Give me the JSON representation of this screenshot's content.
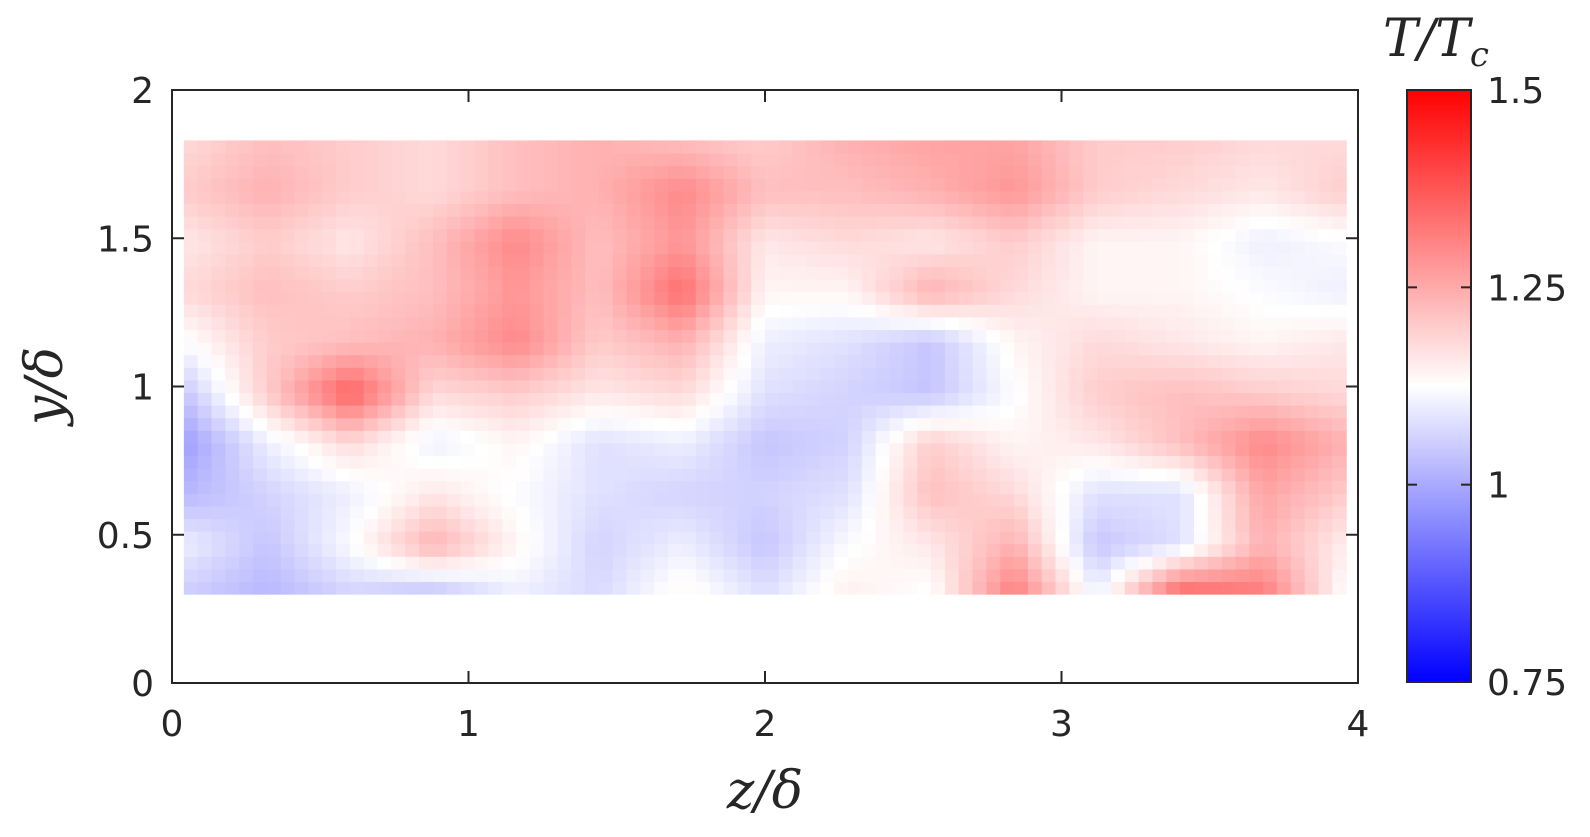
{
  "chart_data": {
    "type": "heatmap",
    "title": "",
    "xlabel": "z/δ",
    "ylabel": "y/δ",
    "xlim": [
      0,
      4
    ],
    "ylim": [
      0,
      2
    ],
    "x_ticks": [
      0,
      1,
      2,
      3,
      4
    ],
    "y_ticks": [
      0,
      0.5,
      1,
      1.5,
      2
    ],
    "x_tick_labels": [
      "0",
      "1",
      "2",
      "3",
      "4"
    ],
    "y_tick_labels": [
      "0",
      "0.5",
      "1",
      "1.5",
      "2"
    ],
    "colorbar": {
      "title": "T/T",
      "title_subscript": "c",
      "range": [
        0.75,
        1.5
      ],
      "ticks": [
        0.75,
        1,
        1.25,
        1.5
      ],
      "tick_labels": [
        "0.75",
        "1",
        "1.25",
        "1.5"
      ],
      "colormap": [
        "#0000ff",
        "#ffffff",
        "#ff0000"
      ],
      "white_at": 1.125
    },
    "grid": false,
    "data_extent": {
      "x": [
        0.04,
        3.96
      ],
      "y": [
        0.3,
        1.83
      ]
    },
    "x": [
      0.04,
      0.32,
      0.6,
      0.88,
      1.16,
      1.44,
      1.72,
      2.0,
      2.28,
      2.56,
      2.84,
      3.12,
      3.4,
      3.68,
      3.96
    ],
    "y": [
      0.3,
      0.47,
      0.64,
      0.81,
      0.98,
      1.15,
      1.32,
      1.49,
      1.66,
      1.83
    ],
    "values": [
      [
        1.05,
        1.02,
        1.06,
        1.03,
        1.1,
        1.07,
        1.14,
        1.08,
        1.15,
        1.12,
        1.32,
        1.1,
        1.36,
        1.32,
        1.12
      ],
      [
        1.1,
        1.04,
        1.12,
        1.24,
        1.14,
        1.06,
        1.1,
        1.04,
        1.12,
        1.16,
        1.24,
        1.04,
        1.08,
        1.24,
        1.15
      ],
      [
        1.02,
        1.06,
        1.1,
        1.16,
        1.12,
        1.08,
        1.06,
        1.06,
        1.08,
        1.22,
        1.18,
        1.08,
        1.08,
        1.26,
        1.2
      ],
      [
        0.98,
        1.1,
        1.18,
        1.1,
        1.14,
        1.08,
        1.1,
        1.04,
        1.06,
        1.2,
        1.14,
        1.16,
        1.22,
        1.3,
        1.24
      ],
      [
        1.04,
        1.2,
        1.36,
        1.18,
        1.2,
        1.16,
        1.18,
        1.08,
        1.06,
        1.04,
        1.12,
        1.2,
        1.22,
        1.2,
        1.18
      ],
      [
        1.12,
        1.2,
        1.22,
        1.24,
        1.3,
        1.2,
        1.24,
        1.1,
        1.08,
        1.04,
        1.14,
        1.18,
        1.16,
        1.14,
        1.16
      ],
      [
        1.18,
        1.22,
        1.2,
        1.22,
        1.28,
        1.22,
        1.34,
        1.14,
        1.14,
        1.24,
        1.18,
        1.14,
        1.14,
        1.12,
        1.1
      ],
      [
        1.16,
        1.2,
        1.16,
        1.22,
        1.3,
        1.22,
        1.28,
        1.16,
        1.18,
        1.16,
        1.2,
        1.14,
        1.14,
        1.1,
        1.12
      ],
      [
        1.2,
        1.24,
        1.2,
        1.18,
        1.22,
        1.24,
        1.3,
        1.22,
        1.22,
        1.24,
        1.28,
        1.2,
        1.18,
        1.16,
        1.2
      ],
      [
        1.18,
        1.22,
        1.2,
        1.18,
        1.22,
        1.24,
        1.22,
        1.2,
        1.24,
        1.26,
        1.26,
        1.2,
        1.2,
        1.18,
        1.18
      ]
    ]
  }
}
